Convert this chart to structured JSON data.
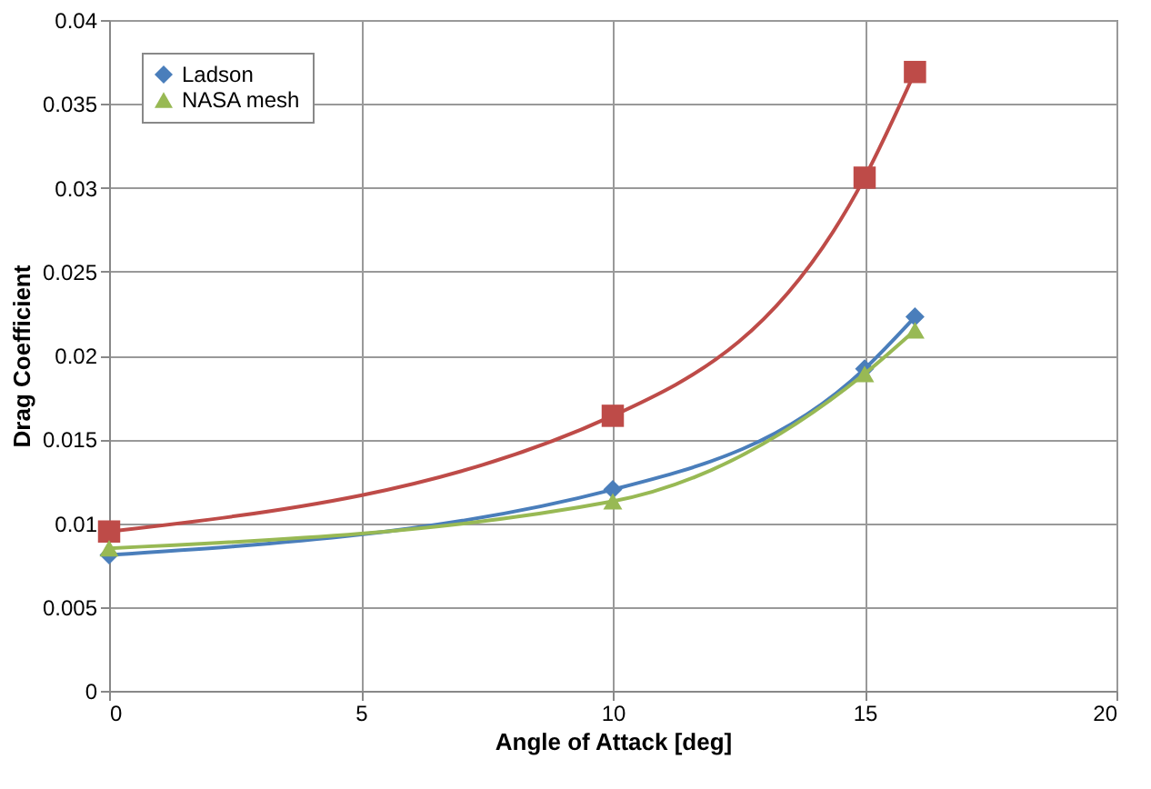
{
  "chart_data": {
    "type": "line",
    "xlabel": "Angle of Attack [deg]",
    "ylabel": "Drag Coefficient",
    "x": [
      0,
      10,
      15,
      16
    ],
    "xlim": [
      0,
      20
    ],
    "xticks": [
      0,
      5,
      10,
      15,
      20
    ],
    "ylim": [
      0,
      0.04
    ],
    "yticks": [
      0,
      0.005,
      0.01,
      0.015,
      0.02,
      0.025,
      0.03,
      0.035,
      0.04
    ],
    "grid": true,
    "legend": "top left",
    "series": [
      {
        "name": "Ladson",
        "color": "#4a7ebb",
        "marker": "diamond",
        "values": [
          0.0081,
          0.012,
          0.0192,
          0.0223
        ]
      },
      {
        "color": "#be4b48",
        "marker": "square",
        "values": [
          0.0095,
          0.0164,
          0.0306,
          0.0369
        ]
      },
      {
        "name": "NASA mesh",
        "color": "#98b954",
        "marker": "triangle",
        "values": [
          0.0085,
          0.0113,
          0.0189,
          0.0215
        ]
      }
    ]
  }
}
